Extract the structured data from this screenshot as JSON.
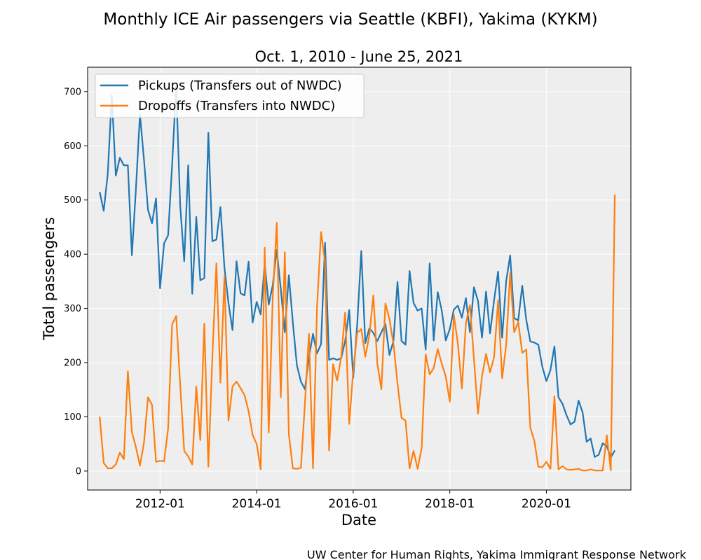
{
  "chart_data": {
    "type": "line",
    "title": "Monthly ICE Air passengers via Seattle (KBFI), Yakima (KYKM)",
    "subtitle": "Oct. 1, 2010 - June 25, 2021",
    "xlabel": "Date",
    "ylabel": "Total passengers",
    "credit": "UW Center for Human Rights, Yakima Immigrant Response Network",
    "x_start": "2010-10",
    "x_ticks": [
      "2012-01",
      "2014-01",
      "2016-01",
      "2018-01",
      "2020-01"
    ],
    "y_ticks": [
      0,
      100,
      200,
      300,
      400,
      500,
      600,
      700
    ],
    "xlim": [
      "2010-07",
      "2021-10"
    ],
    "ylim": [
      -35,
      745
    ],
    "grid": true,
    "legend_position": "top-left",
    "background": "#eeeeee",
    "series": [
      {
        "name": "Pickups (Transfers out of NWDC)",
        "color": "#1f77b4",
        "values": [
          515,
          480,
          548,
          693,
          545,
          578,
          564,
          564,
          398,
          520,
          658,
          575,
          482,
          457,
          503,
          337,
          420,
          435,
          565,
          710,
          490,
          387,
          564,
          327,
          469,
          352,
          356,
          624,
          424,
          427,
          487,
          375,
          310,
          260,
          387,
          328,
          324,
          386,
          274,
          312,
          289,
          383,
          307,
          343,
          408,
          336,
          256,
          361,
          274,
          195,
          165,
          151,
          210,
          253,
          217,
          234,
          421,
          205,
          208,
          205,
          208,
          240,
          297,
          172,
          271,
          406,
          236,
          263,
          255,
          240,
          256,
          271,
          214,
          240,
          349,
          240,
          233,
          369,
          310,
          296,
          300,
          224,
          383,
          241,
          330,
          296,
          241,
          262,
          298,
          305,
          283,
          319,
          256,
          339,
          314,
          246,
          331,
          254,
          315,
          368,
          246,
          350,
          398,
          282,
          278,
          342,
          279,
          239,
          237,
          233,
          192,
          166,
          186,
          230,
          136,
          124,
          103,
          86,
          91,
          130,
          108,
          54,
          60,
          26,
          30,
          51,
          46,
          25,
          38
        ]
      },
      {
        "name": "Dropoffs (Transfers into NWDC)",
        "color": "#ff7f0e",
        "values": [
          100,
          15,
          5,
          5,
          12,
          34,
          22,
          184,
          72,
          44,
          10,
          52,
          136,
          122,
          17,
          19,
          18,
          78,
          271,
          286,
          160,
          37,
          27,
          12,
          156,
          57,
          272,
          8,
          211,
          383,
          163,
          360,
          93,
          156,
          165,
          153,
          140,
          110,
          67,
          50,
          3,
          412,
          71,
          320,
          458,
          136,
          404,
          68,
          5,
          4,
          6,
          125,
          253,
          5,
          301,
          441,
          385,
          38,
          197,
          167,
          210,
          292,
          87,
          185,
          255,
          262,
          211,
          250,
          324,
          197,
          151,
          309,
          280,
          235,
          162,
          98,
          93,
          5,
          37,
          4,
          42,
          215,
          178,
          190,
          225,
          198,
          174,
          128,
          288,
          235,
          152,
          273,
          306,
          207,
          106,
          175,
          216,
          182,
          210,
          315,
          171,
          232,
          366,
          256,
          275,
          218,
          224,
          80,
          56,
          8,
          7,
          17,
          4,
          138,
          3,
          9,
          3,
          2,
          3,
          4,
          1,
          1,
          3,
          1,
          1,
          1,
          66,
          1,
          510
        ]
      }
    ]
  }
}
